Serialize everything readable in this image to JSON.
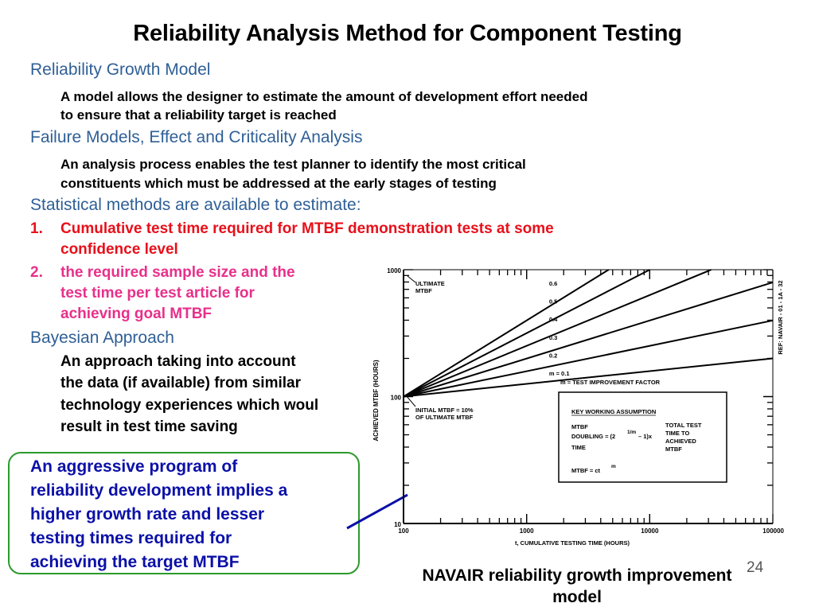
{
  "title": "Reliability Analysis Method for Component Testing",
  "sections": {
    "growth_heading": "Reliability Growth Model",
    "growth_text_1": "A model allows the designer to estimate the amount of development effort needed",
    "growth_text_2": "to ensure that a reliability target is reached",
    "fmeca_heading": "Failure Models, Effect and Criticality Analysis",
    "fmeca_text_1": "An analysis process enables the test planner to identify the most critical",
    "fmeca_text_2": "constituents which must be addressed at the early stages of testing",
    "stat_heading": "Statistical methods are available to estimate:",
    "item1_num": "1.",
    "item1_line1": "Cumulative test time required for MTBF demonstration tests at some",
    "item1_line2": "confidence level",
    "item2_num": "2.",
    "item2_line1": "the required sample size and the",
    "item2_line2": "test time per test article for",
    "item2_line3": "achieving goal MTBF",
    "bayes_heading": "Bayesian Approach",
    "bayes_1": "An approach taking into account",
    "bayes_2": "the data (if available) from similar",
    "bayes_3": "technology experiences which woul",
    "bayes_4": "result in test time saving"
  },
  "callout": {
    "line1": "An aggressive program of",
    "line2": "reliability development implies a",
    "line3": "higher growth rate and lesser",
    "line4": "testing times required for",
    "line5": "achieving the target MTBF"
  },
  "caption": {
    "line1": "NAVAIR reliability growth improvement",
    "line2": "model"
  },
  "page_number": "24",
  "colors": {
    "heading": "#2f5f96",
    "red": "#e8101a",
    "pink": "#e8308a",
    "callout_text": "#0b10a8",
    "callout_border": "#2c9a2c",
    "arrow": "#0b10a8"
  },
  "chart_data": {
    "type": "line",
    "xscale": "log",
    "yscale": "log",
    "xlim": [
      100,
      100000
    ],
    "ylim": [
      10,
      1000
    ],
    "x_ticks": [
      "100",
      "1000",
      "10000",
      "100000"
    ],
    "y_ticks": [
      "1000",
      "100",
      "10"
    ],
    "xlabel": "t, CUMULATIVE TESTING TIME (HOURS)",
    "ylabel": "ACHIEVED MTBF (HOURS)",
    "ref": "REF: NAVAIR - 01 - 1A - 32",
    "series": [
      {
        "name": "0.6",
        "x": [
          100,
          100000
        ],
        "y": [
          100,
          6310
        ]
      },
      {
        "name": "0.5",
        "x": [
          100,
          100000
        ],
        "y": [
          100,
          3162
        ]
      },
      {
        "name": "0.4",
        "x": [
          100,
          100000
        ],
        "y": [
          100,
          1585
        ]
      },
      {
        "name": "0.3",
        "x": [
          100,
          100000
        ],
        "y": [
          100,
          794
        ]
      },
      {
        "name": "0.2",
        "x": [
          100,
          100000
        ],
        "y": [
          100,
          398
        ]
      },
      {
        "name": "m = 0.1",
        "x": [
          100,
          100000
        ],
        "y": [
          100,
          200
        ]
      }
    ],
    "annotations": {
      "ultimate": [
        "ULTIMATE",
        "MTBF"
      ],
      "initial": [
        "INITIAL MTBF = 10%",
        "OF ULTIMATE MTBF"
      ],
      "m_def": "m =  TEST IMPROVEMENT FACTOR",
      "assumption_title": "KEY WORKING ASSUMPTION",
      "assumption_left": [
        "MTBF",
        "DOUBLING = (2",
        "TIME"
      ],
      "assumption_exp": "1/m",
      "assumption_tail": "– 1)x",
      "assumption_right": [
        "TOTAL TEST",
        "TIME TO",
        "ACHIEVED",
        "MTBF"
      ],
      "assumption_formula": "MTBF = ct",
      "assumption_formula_exp": "m"
    }
  }
}
